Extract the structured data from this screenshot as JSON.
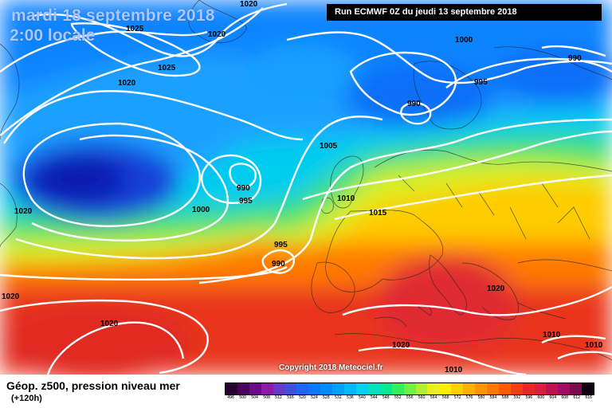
{
  "header": {
    "date": "mardi 18 septembre 2018",
    "time": "2:00 locale",
    "run": "Run ECMWF 0Z du jeudi 13 septembre 2018"
  },
  "copyright": "Copyright 2018 Meteociel.fr",
  "footer": {
    "title": "Géop. z500, pression niveau mer",
    "subtitle": "(+120h)"
  },
  "isobar_labels": [
    "1020",
    "1025",
    "1020",
    "1025",
    "1020",
    "1000",
    "990",
    "990",
    "995",
    "1005",
    "1000",
    "990",
    "995",
    "1010",
    "1015",
    "995",
    "990",
    "1020",
    "1020",
    "1020",
    "1020",
    "1020",
    "1010",
    "1010"
  ],
  "legend": {
    "ticks": [
      "496",
      "500",
      "504",
      "508",
      "512",
      "516",
      "520",
      "524",
      "528",
      "532",
      "536",
      "540",
      "544",
      "548",
      "552",
      "556",
      "560",
      "564",
      "568",
      "572",
      "576",
      "580",
      "584",
      "588",
      "592",
      "596",
      "600",
      "604",
      "608",
      "612",
      "616"
    ],
    "colors": [
      "#2a0034",
      "#4b0060",
      "#6e0a8a",
      "#8f1aa8",
      "#6a38c8",
      "#3c50dc",
      "#2064f0",
      "#0a78ff",
      "#008cff",
      "#00a0ff",
      "#00b8ff",
      "#00d0f0",
      "#00e0c0",
      "#00e890",
      "#30f060",
      "#70f040",
      "#b0f030",
      "#e8f020",
      "#fff000",
      "#ffd000",
      "#ffb000",
      "#ff9400",
      "#ff7800",
      "#ff5a00",
      "#f53c14",
      "#e82828",
      "#d81e3c",
      "#c01050",
      "#a00a64",
      "#7c0a50",
      "#100010"
    ]
  }
}
